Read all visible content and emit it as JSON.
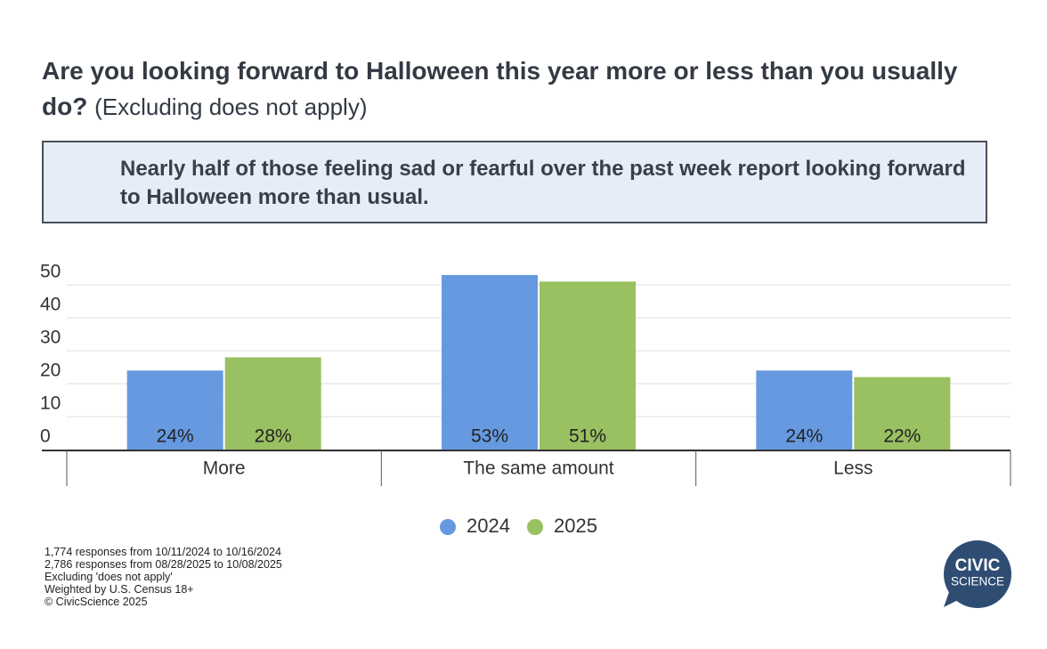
{
  "chart_data": {
    "type": "bar",
    "title": "Are you looking forward to Halloween this year more or less than you usually do?",
    "subtitle": "(Excluding does not apply)",
    "callout": "Nearly half of those feeling sad or fearful over the past week report looking forward to Halloween more than usual.",
    "categories": [
      "More",
      "The same amount",
      "Less"
    ],
    "series": [
      {
        "name": "2024",
        "color": "#6699e0",
        "values": [
          24,
          53,
          24
        ],
        "value_labels": [
          "24%",
          "53%",
          "24%"
        ]
      },
      {
        "name": "2025",
        "color": "#99c061",
        "values": [
          28,
          51,
          22
        ],
        "value_labels": [
          "28%",
          "51%",
          "22%"
        ]
      }
    ],
    "ylim": [
      0,
      55
    ],
    "yticks": [
      0,
      10,
      20,
      30,
      40,
      50
    ],
    "grid": true,
    "footnotes": [
      "1,774 responses from 10/11/2024 to 10/16/2024",
      "2,786 responses from 08/28/2025 to 10/08/2025",
      "Excluding 'does not apply'",
      "Weighted by U.S. Census 18+",
      "© CivicScience 2025"
    ],
    "logo": [
      "CIVIC",
      "SCIENCE"
    ]
  }
}
